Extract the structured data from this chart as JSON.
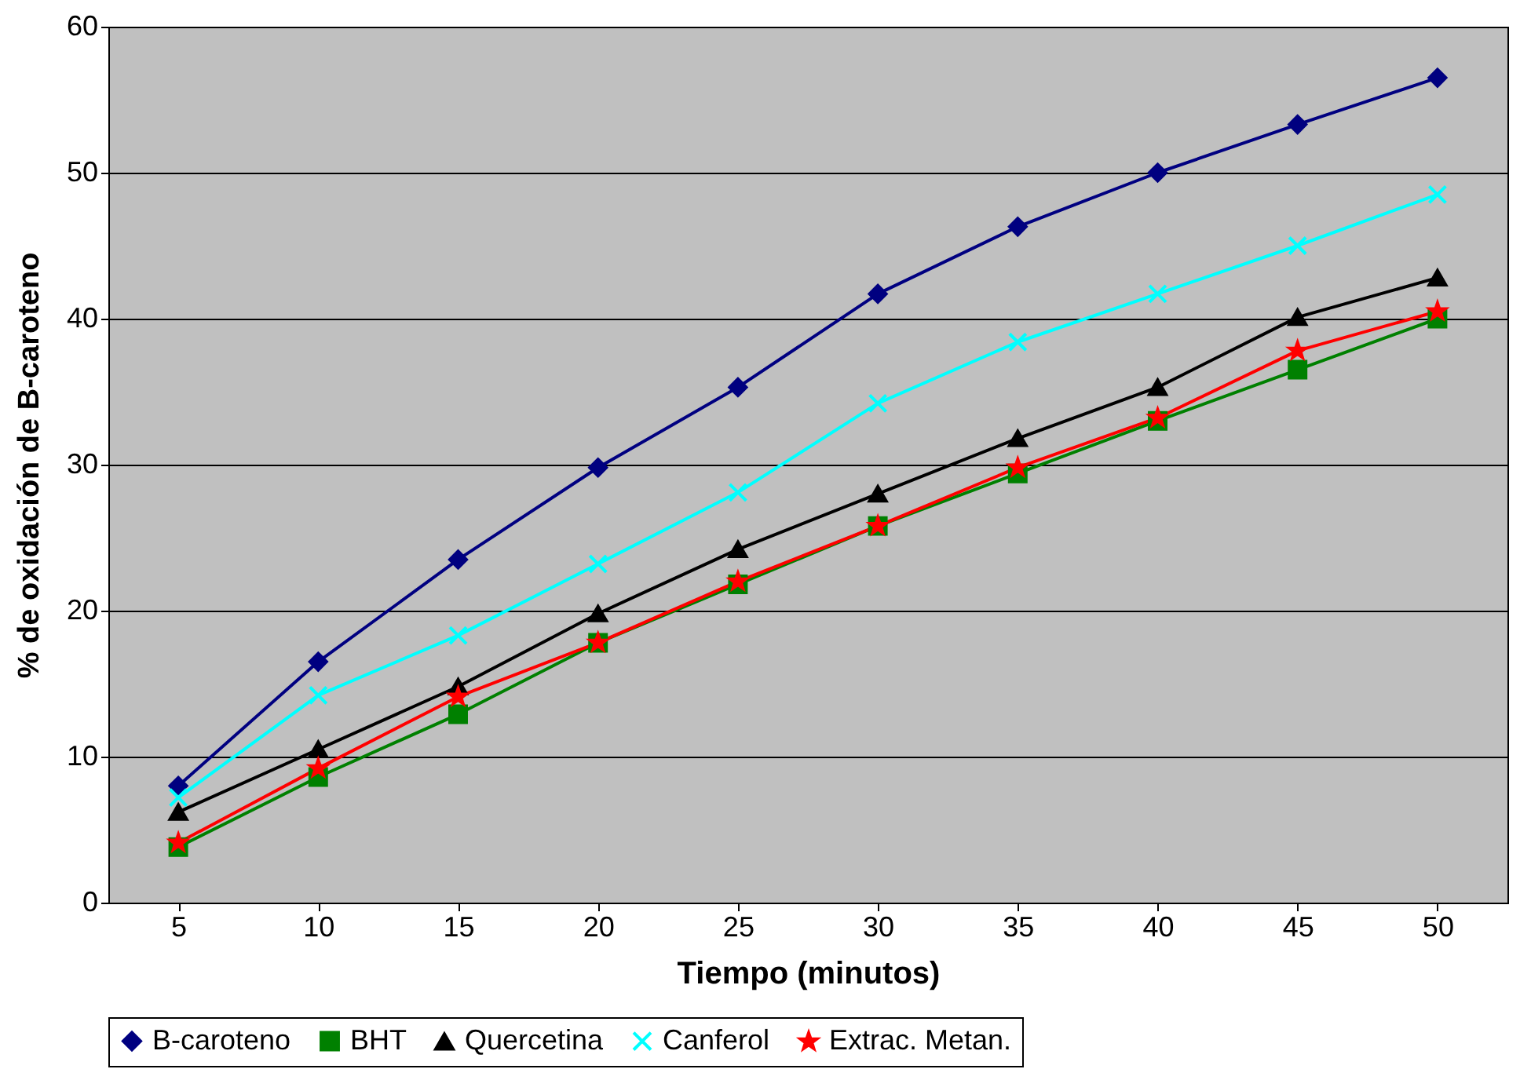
{
  "chart_data": {
    "type": "line",
    "xlabel": "Tiempo (minutos)",
    "ylabel": "% de oxidación de B-caroteno",
    "categories": [
      "5",
      "10",
      "15",
      "20",
      "25",
      "30",
      "35",
      "40",
      "45",
      "50"
    ],
    "series": [
      {
        "name": "B-caroteno",
        "color": "#000080",
        "marker": "diamond",
        "values": [
          8,
          16.5,
          23.5,
          29.8,
          35.3,
          41.7,
          46.3,
          50,
          53.3,
          56.5
        ]
      },
      {
        "name": "BHT",
        "color": "#008000",
        "marker": "square",
        "values": [
          3.8,
          8.6,
          12.9,
          17.8,
          21.8,
          25.8,
          29.4,
          33,
          36.5,
          40
        ]
      },
      {
        "name": "Quercetina",
        "color": "#000000",
        "marker": "triangle",
        "values": [
          6.2,
          10.5,
          14.8,
          19.8,
          24.2,
          28,
          31.8,
          35.3,
          40.1,
          42.8
        ]
      },
      {
        "name": "Canferol",
        "color": "#00ffff",
        "marker": "cross",
        "values": [
          7.2,
          14.2,
          18.3,
          23.2,
          28.1,
          34.2,
          38.4,
          41.7,
          45,
          48.5
        ]
      },
      {
        "name": "Extrac. Metan.",
        "color": "#ff0000",
        "marker": "star",
        "values": [
          4.1,
          9.2,
          14.1,
          17.8,
          22,
          25.8,
          29.8,
          33.2,
          37.8,
          40.5
        ]
      }
    ],
    "ylim": [
      0,
      60
    ],
    "yticks": [
      0,
      10,
      20,
      30,
      40,
      50,
      60
    ],
    "grid": "y",
    "legend": "bottom",
    "line_style": "solid"
  }
}
